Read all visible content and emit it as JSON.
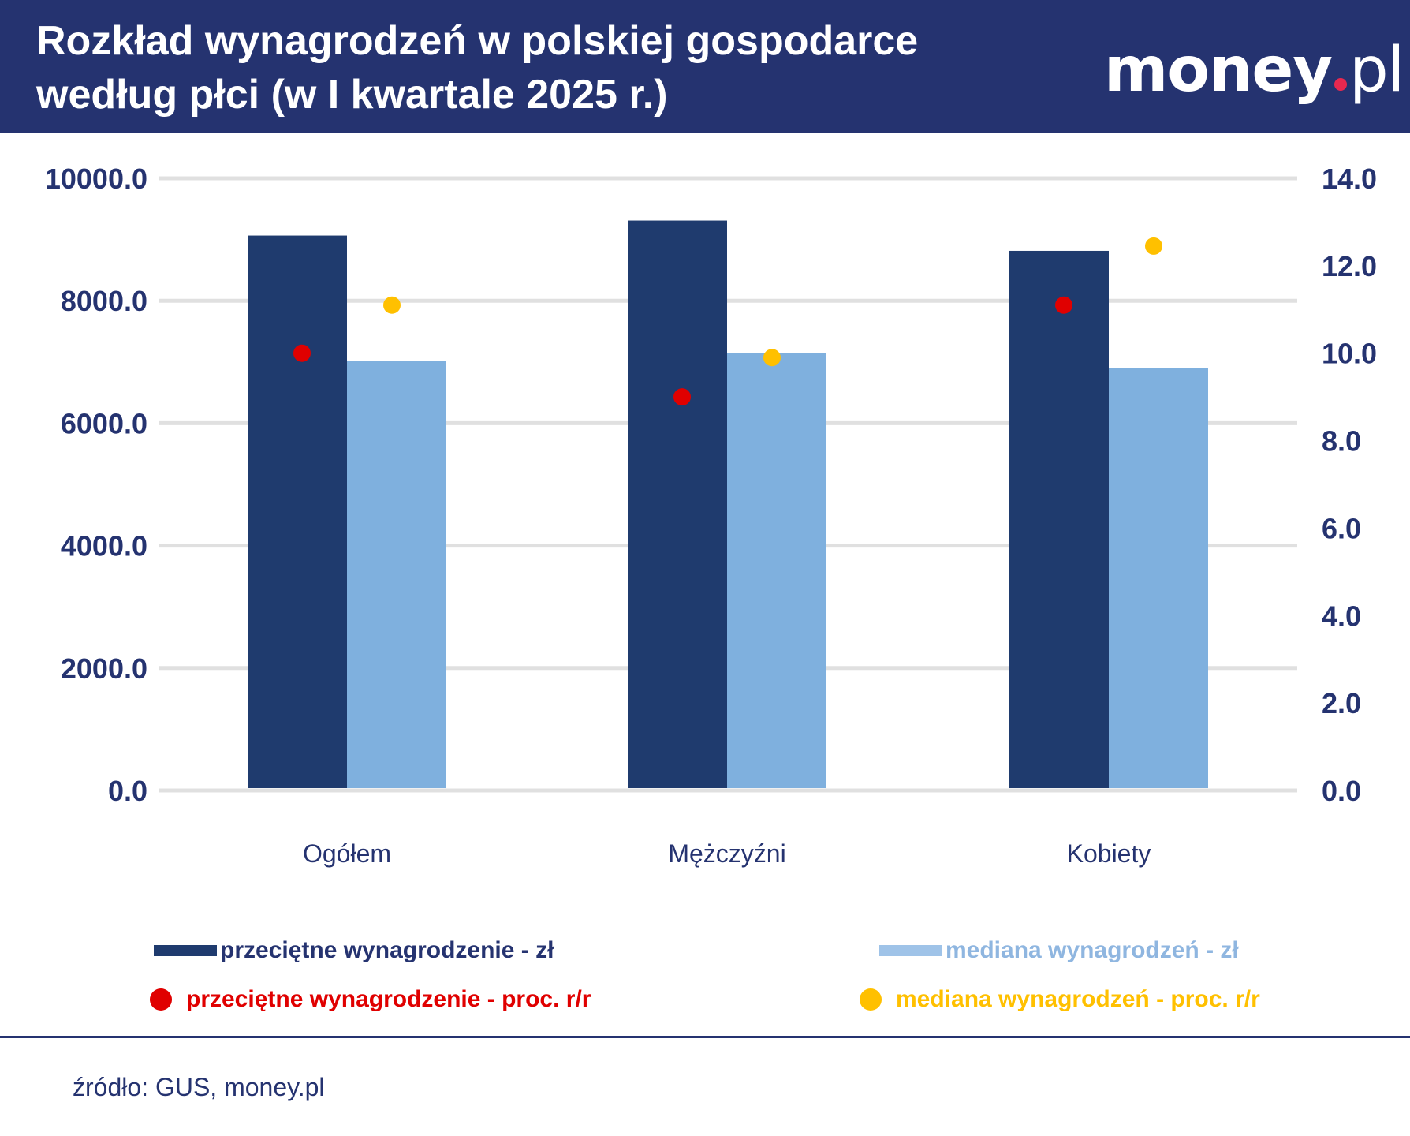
{
  "header": {
    "title_line1": "Rozkład wynagrodzeń w polskiej gospodarce",
    "title_line2": "według płci (w I kwartale 2025 r.)",
    "logo": "money.pl"
  },
  "chart_data": {
    "type": "bar",
    "categories": [
      "Ogółem",
      "Mężczyźni",
      "Kobiety"
    ],
    "series": [
      {
        "name": "przeciętne wynagrodzenie - zł",
        "kind": "bar",
        "axis": "left",
        "color": "#1f3b6e",
        "values": [
          9065,
          9310,
          8815
        ]
      },
      {
        "name": "mediana wynagrodzeń - zł",
        "kind": "bar",
        "axis": "left",
        "color": "#7fb0de",
        "values": [
          7020,
          7145,
          6895
        ]
      },
      {
        "name": "przeciętne wynagrodzenie - proc. r/r",
        "kind": "scatter",
        "axis": "right",
        "color": "#e00000",
        "values": [
          10.0,
          9.0,
          11.1
        ]
      },
      {
        "name": "mediana wynagrodzeń - proc. r/r",
        "kind": "scatter",
        "axis": "right",
        "color": "#ffc000",
        "values": [
          11.1,
          9.9,
          12.45
        ]
      }
    ],
    "left_axis": {
      "ylim": [
        0,
        10000
      ],
      "ticks": [
        "0.0",
        "2000.0",
        "4000.0",
        "6000.0",
        "8000.0",
        "10000.0"
      ]
    },
    "right_axis": {
      "ylim": [
        0,
        14
      ],
      "ticks": [
        "0.0",
        "2.0",
        "4.0",
        "6.0",
        "8.0",
        "10.0",
        "12.0",
        "14.0"
      ]
    },
    "grid": true,
    "legend_position": "bottom"
  },
  "footer": {
    "source": "źródło: GUS, money.pl"
  }
}
